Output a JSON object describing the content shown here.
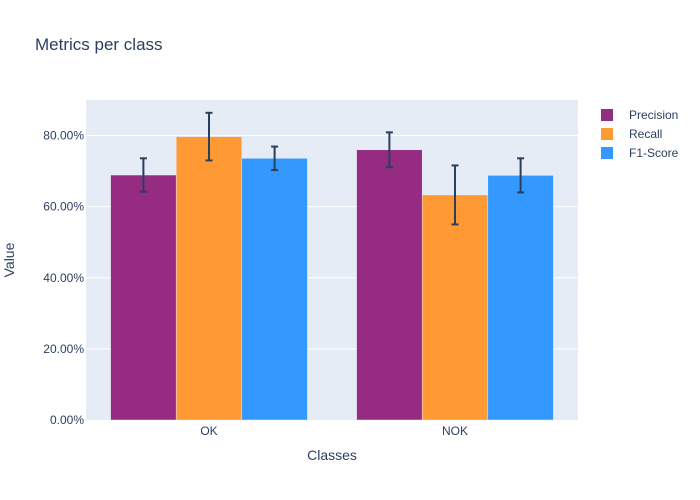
{
  "chart_data": {
    "type": "bar",
    "title": "Metrics per class",
    "xlabel": "Classes",
    "ylabel": "Value",
    "categories": [
      "OK",
      "NOK"
    ],
    "ylim": [
      0,
      0.9
    ],
    "yticks": [
      0,
      0.2,
      0.4,
      0.6,
      0.8
    ],
    "ytick_labels": [
      "0.00%",
      "20.00%",
      "40.00%",
      "60.00%",
      "80.00%"
    ],
    "grid": true,
    "legend_position": "top-right",
    "series": [
      {
        "name": "Precision",
        "color": "#962b82",
        "values": [
          0.689,
          0.76
        ],
        "errors": [
          0.047,
          0.049
        ]
      },
      {
        "name": "Recall",
        "color": "#ff9933",
        "values": [
          0.797,
          0.633
        ],
        "errors": [
          0.067,
          0.083
        ]
      },
      {
        "name": "F1-Score",
        "color": "#3399ff",
        "values": [
          0.736,
          0.688
        ],
        "errors": [
          0.033,
          0.048
        ]
      }
    ]
  }
}
